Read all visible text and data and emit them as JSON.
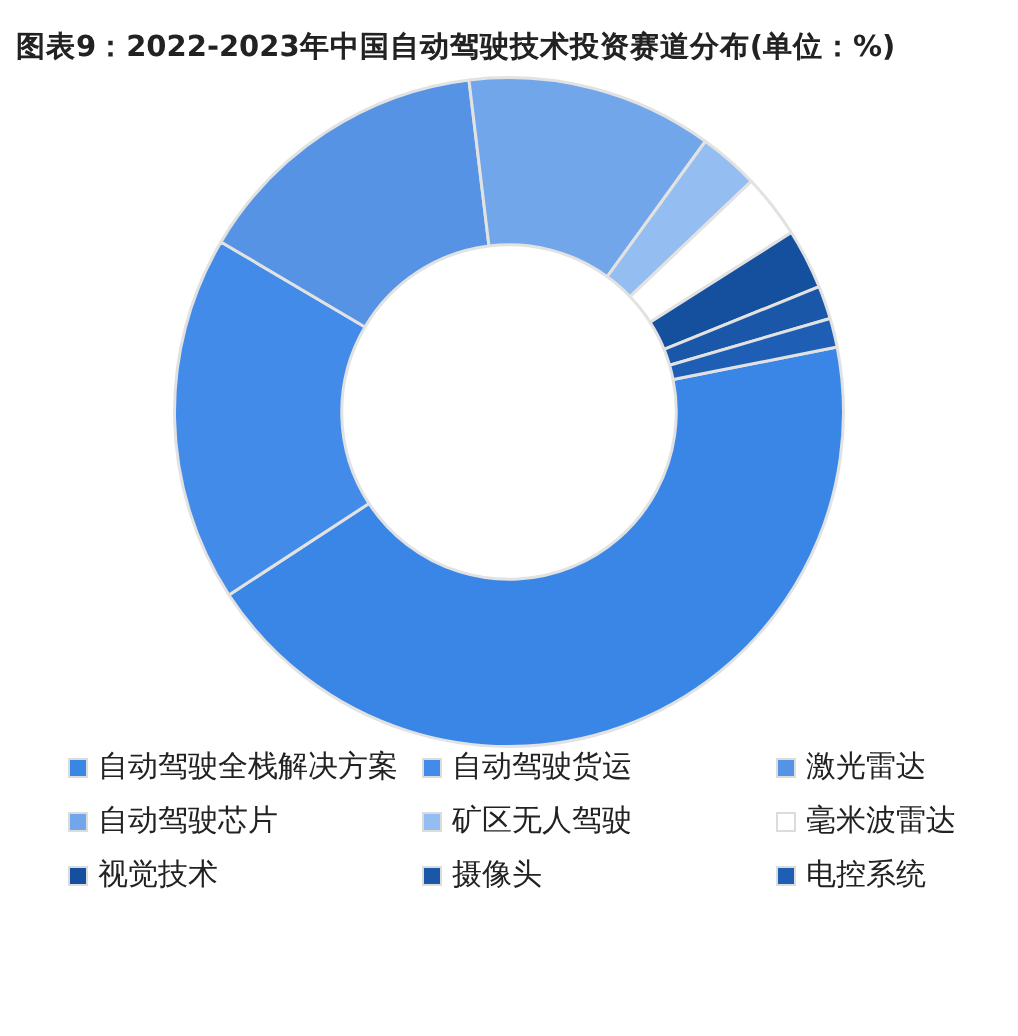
{
  "chart_data": {
    "type": "donut",
    "title": "图表9：2022-2023年中国自动驾驶技术投资赛道分布(单位：%)",
    "categories": [
      "自动驾驶全栈解决方案",
      "自动驾驶货运",
      "激光雷达",
      "自动驾驶芯片",
      "矿区无人驾驶",
      "毫米波雷达",
      "视觉技术",
      "摄像头",
      "电控系统"
    ],
    "values": [
      43.9,
      17.7,
      14.6,
      11.9,
      2.9,
      3.1,
      2.9,
      1.6,
      1.4
    ],
    "colors": [
      "#3a86e6",
      "#428be8",
      "#5693e4",
      "#72a6ea",
      "#94bdf2",
      "#ffffff",
      "#15509e",
      "#1a57a8",
      "#1e5eb5"
    ],
    "legend": "bottom"
  }
}
